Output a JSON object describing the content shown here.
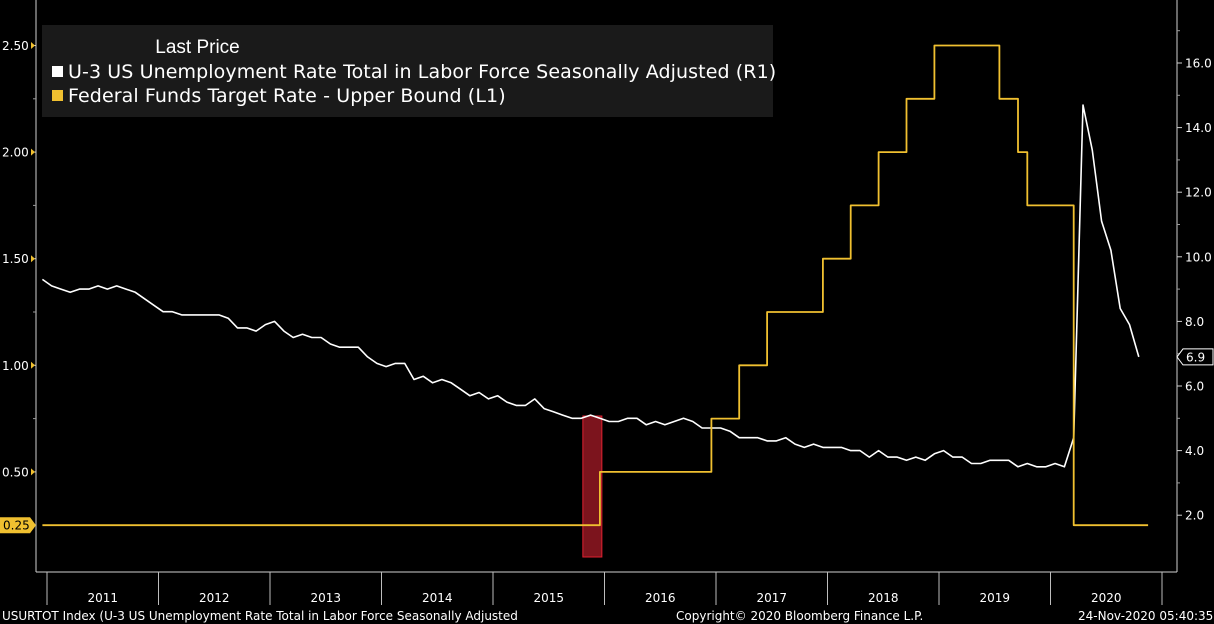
{
  "legend": {
    "title": "Last Price",
    "items": [
      {
        "label": "U-3 US Unemployment Rate Total in Labor Force Seasonally Adjusted  (R1)",
        "color": "#ffffff"
      },
      {
        "label": "Federal Funds Target Rate - Upper Bound  (L1)",
        "color": "#f0c030"
      }
    ]
  },
  "footer": {
    "left": "USURTOT Index (U-3 US Unemployment Rate Total in Labor Force Seasonally Adjusted",
    "center": "Copyright© 2020 Bloomberg Finance L.P.",
    "right": "24-Nov-2020 05:40:35"
  },
  "chart_data": {
    "type": "line",
    "x_axis": {
      "ticks": [
        "2011",
        "2012",
        "2013",
        "2014",
        "2015",
        "2016",
        "2017",
        "2018",
        "2019",
        "2020"
      ],
      "range": [
        "2010-12",
        "2020-10"
      ]
    },
    "left_axis": {
      "ticks": [
        "0.50",
        "1.00",
        "1.50",
        "2.00",
        "2.50"
      ],
      "ylim": [
        0,
        2.5
      ],
      "last_value_label": "0.25"
    },
    "right_axis": {
      "ticks": [
        "2.0",
        "4.0",
        "6.0",
        "8.0",
        "10.0",
        "12.0",
        "14.0",
        "16.0"
      ],
      "ylim": [
        1.4,
        16.8
      ],
      "last_value_label": "6.9"
    },
    "highlight": {
      "date": "2015-12",
      "color": "#b01c2a"
    },
    "series": [
      {
        "name": "U-3 US Unemployment Rate Total in Labor Force Seasonally Adjusted",
        "axis": "right",
        "color": "#ffffff",
        "points": [
          [
            "2010-12",
            9.3
          ],
          [
            "2011-01",
            9.1
          ],
          [
            "2011-02",
            9.0
          ],
          [
            "2011-03",
            8.9
          ],
          [
            "2011-04",
            9.0
          ],
          [
            "2011-05",
            9.0
          ],
          [
            "2011-06",
            9.1
          ],
          [
            "2011-07",
            9.0
          ],
          [
            "2011-08",
            9.1
          ],
          [
            "2011-09",
            9.0
          ],
          [
            "2011-10",
            8.9
          ],
          [
            "2011-11",
            8.7
          ],
          [
            "2011-12",
            8.5
          ],
          [
            "2012-01",
            8.3
          ],
          [
            "2012-02",
            8.3
          ],
          [
            "2012-03",
            8.2
          ],
          [
            "2012-04",
            8.2
          ],
          [
            "2012-05",
            8.2
          ],
          [
            "2012-06",
            8.2
          ],
          [
            "2012-07",
            8.2
          ],
          [
            "2012-08",
            8.1
          ],
          [
            "2012-09",
            7.8
          ],
          [
            "2012-10",
            7.8
          ],
          [
            "2012-11",
            7.7
          ],
          [
            "2012-12",
            7.9
          ],
          [
            "2013-01",
            8.0
          ],
          [
            "2013-02",
            7.7
          ],
          [
            "2013-03",
            7.5
          ],
          [
            "2013-04",
            7.6
          ],
          [
            "2013-05",
            7.5
          ],
          [
            "2013-06",
            7.5
          ],
          [
            "2013-07",
            7.3
          ],
          [
            "2013-08",
            7.2
          ],
          [
            "2013-09",
            7.2
          ],
          [
            "2013-10",
            7.2
          ],
          [
            "2013-11",
            6.9
          ],
          [
            "2013-12",
            6.7
          ],
          [
            "2014-01",
            6.6
          ],
          [
            "2014-02",
            6.7
          ],
          [
            "2014-03",
            6.7
          ],
          [
            "2014-04",
            6.2
          ],
          [
            "2014-05",
            6.3
          ],
          [
            "2014-06",
            6.1
          ],
          [
            "2014-07",
            6.2
          ],
          [
            "2014-08",
            6.1
          ],
          [
            "2014-09",
            5.9
          ],
          [
            "2014-10",
            5.7
          ],
          [
            "2014-11",
            5.8
          ],
          [
            "2014-12",
            5.6
          ],
          [
            "2015-01",
            5.7
          ],
          [
            "2015-02",
            5.5
          ],
          [
            "2015-03",
            5.4
          ],
          [
            "2015-04",
            5.4
          ],
          [
            "2015-05",
            5.6
          ],
          [
            "2015-06",
            5.3
          ],
          [
            "2015-07",
            5.2
          ],
          [
            "2015-08",
            5.1
          ],
          [
            "2015-09",
            5.0
          ],
          [
            "2015-10",
            5.0
          ],
          [
            "2015-11",
            5.1
          ],
          [
            "2015-12",
            5.0
          ],
          [
            "2016-01",
            4.9
          ],
          [
            "2016-02",
            4.9
          ],
          [
            "2016-03",
            5.0
          ],
          [
            "2016-04",
            5.0
          ],
          [
            "2016-05",
            4.8
          ],
          [
            "2016-06",
            4.9
          ],
          [
            "2016-07",
            4.8
          ],
          [
            "2016-08",
            4.9
          ],
          [
            "2016-09",
            5.0
          ],
          [
            "2016-10",
            4.9
          ],
          [
            "2016-11",
            4.7
          ],
          [
            "2016-12",
            4.7
          ],
          [
            "2017-01",
            4.7
          ],
          [
            "2017-02",
            4.6
          ],
          [
            "2017-03",
            4.4
          ],
          [
            "2017-04",
            4.4
          ],
          [
            "2017-05",
            4.4
          ],
          [
            "2017-06",
            4.3
          ],
          [
            "2017-07",
            4.3
          ],
          [
            "2017-08",
            4.4
          ],
          [
            "2017-09",
            4.2
          ],
          [
            "2017-10",
            4.1
          ],
          [
            "2017-11",
            4.2
          ],
          [
            "2017-12",
            4.1
          ],
          [
            "2018-01",
            4.1
          ],
          [
            "2018-02",
            4.1
          ],
          [
            "2018-03",
            4.0
          ],
          [
            "2018-04",
            4.0
          ],
          [
            "2018-05",
            3.8
          ],
          [
            "2018-06",
            4.0
          ],
          [
            "2018-07",
            3.8
          ],
          [
            "2018-08",
            3.8
          ],
          [
            "2018-09",
            3.7
          ],
          [
            "2018-10",
            3.8
          ],
          [
            "2018-11",
            3.7
          ],
          [
            "2018-12",
            3.9
          ],
          [
            "2019-01",
            4.0
          ],
          [
            "2019-02",
            3.8
          ],
          [
            "2019-03",
            3.8
          ],
          [
            "2019-04",
            3.6
          ],
          [
            "2019-05",
            3.6
          ],
          [
            "2019-06",
            3.7
          ],
          [
            "2019-07",
            3.7
          ],
          [
            "2019-08",
            3.7
          ],
          [
            "2019-09",
            3.5
          ],
          [
            "2019-10",
            3.6
          ],
          [
            "2019-11",
            3.5
          ],
          [
            "2019-12",
            3.5
          ],
          [
            "2020-01",
            3.6
          ],
          [
            "2020-02",
            3.5
          ],
          [
            "2020-03",
            4.4
          ],
          [
            "2020-04",
            14.7
          ],
          [
            "2020-05",
            13.3
          ],
          [
            "2020-06",
            11.1
          ],
          [
            "2020-07",
            10.2
          ],
          [
            "2020-08",
            8.4
          ],
          [
            "2020-09",
            7.9
          ],
          [
            "2020-10",
            6.9
          ]
        ]
      },
      {
        "name": "Federal Funds Target Rate - Upper Bound",
        "axis": "left",
        "color": "#f0c030",
        "points": [
          [
            "2010-12",
            0.25
          ],
          [
            "2015-12",
            0.25
          ],
          [
            "2015-12",
            0.5
          ],
          [
            "2016-12",
            0.5
          ],
          [
            "2016-12",
            0.75
          ],
          [
            "2017-03",
            0.75
          ],
          [
            "2017-03",
            1.0
          ],
          [
            "2017-06",
            1.0
          ],
          [
            "2017-06",
            1.25
          ],
          [
            "2017-12",
            1.25
          ],
          [
            "2017-12",
            1.5
          ],
          [
            "2018-03",
            1.5
          ],
          [
            "2018-03",
            1.75
          ],
          [
            "2018-06",
            1.75
          ],
          [
            "2018-06",
            2.0
          ],
          [
            "2018-09",
            2.0
          ],
          [
            "2018-09",
            2.25
          ],
          [
            "2018-12",
            2.25
          ],
          [
            "2018-12",
            2.5
          ],
          [
            "2019-07",
            2.5
          ],
          [
            "2019-07",
            2.25
          ],
          [
            "2019-09",
            2.25
          ],
          [
            "2019-09",
            2.0
          ],
          [
            "2019-10",
            2.0
          ],
          [
            "2019-10",
            1.75
          ],
          [
            "2020-03",
            1.75
          ],
          [
            "2020-03",
            0.25
          ],
          [
            "2020-11",
            0.25
          ]
        ]
      }
    ]
  }
}
